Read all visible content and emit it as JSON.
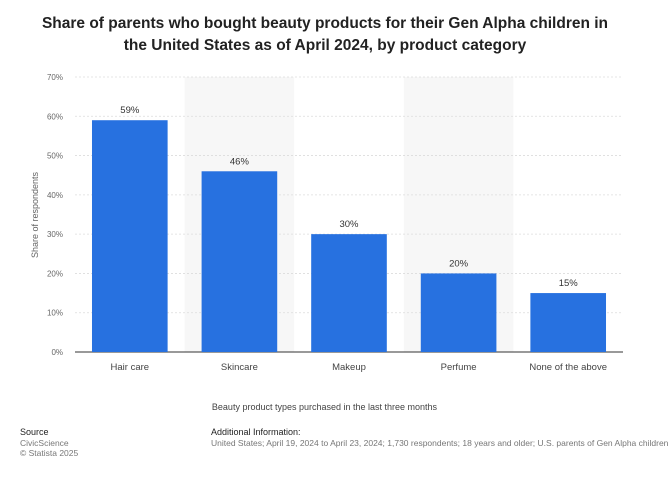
{
  "title": "Share of parents who bought beauty products for their Gen Alpha children in the United States as of April 2024, by product category",
  "chart_data": {
    "type": "bar",
    "title": "Share of parents who bought beauty products for their Gen Alpha children in the United States as of April 2024, by product category",
    "categories": [
      "Hair care",
      "Skincare",
      "Makeup",
      "Perfume",
      "None of the above"
    ],
    "values": [
      59,
      46,
      30,
      20,
      15
    ],
    "value_labels": [
      "59%",
      "46%",
      "30%",
      "20%",
      "15%"
    ],
    "xlabel": "Beauty product types purchased in the last three months",
    "ylabel": "Share of respondents",
    "ylim": [
      0,
      70
    ],
    "yticks": [
      "0%",
      "10%",
      "20%",
      "30%",
      "40%",
      "50%",
      "60%",
      "70%"
    ],
    "grid": true,
    "bar_color": "#2771e0"
  },
  "footer": {
    "source_heading": "Source",
    "source_lines": [
      "CivicScience",
      "© Statista 2025"
    ],
    "info_heading": "Additional Information:",
    "info_text": "United States; April 19, 2024 to April 23, 2024; 1,730 respondents; 18 years and older; U.S. parents of Gen Alpha children"
  }
}
